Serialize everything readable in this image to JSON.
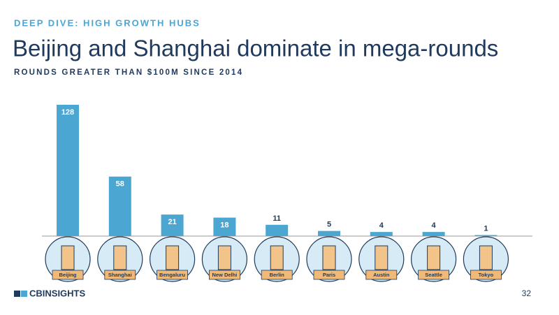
{
  "header": {
    "kicker": "DEEP DIVE: HIGH GROWTH HUBS"
  },
  "chart_data": {
    "type": "bar",
    "title": "Beijing and Shanghai dominate in mega-rounds",
    "subtitle": "ROUNDS GREATER THAN $100M SINCE 2014",
    "categories": [
      "Beijing",
      "Shanghai",
      "Bengaluru",
      "New Delhi",
      "Berlin",
      "Paris",
      "Austin",
      "Seattle",
      "Tokyo"
    ],
    "values": [
      128,
      58,
      21,
      18,
      11,
      5,
      4,
      4,
      1
    ],
    "color": "#4ba6d2"
  },
  "footer": {
    "logo": "CBINSIGHTS",
    "page_number": "32"
  }
}
